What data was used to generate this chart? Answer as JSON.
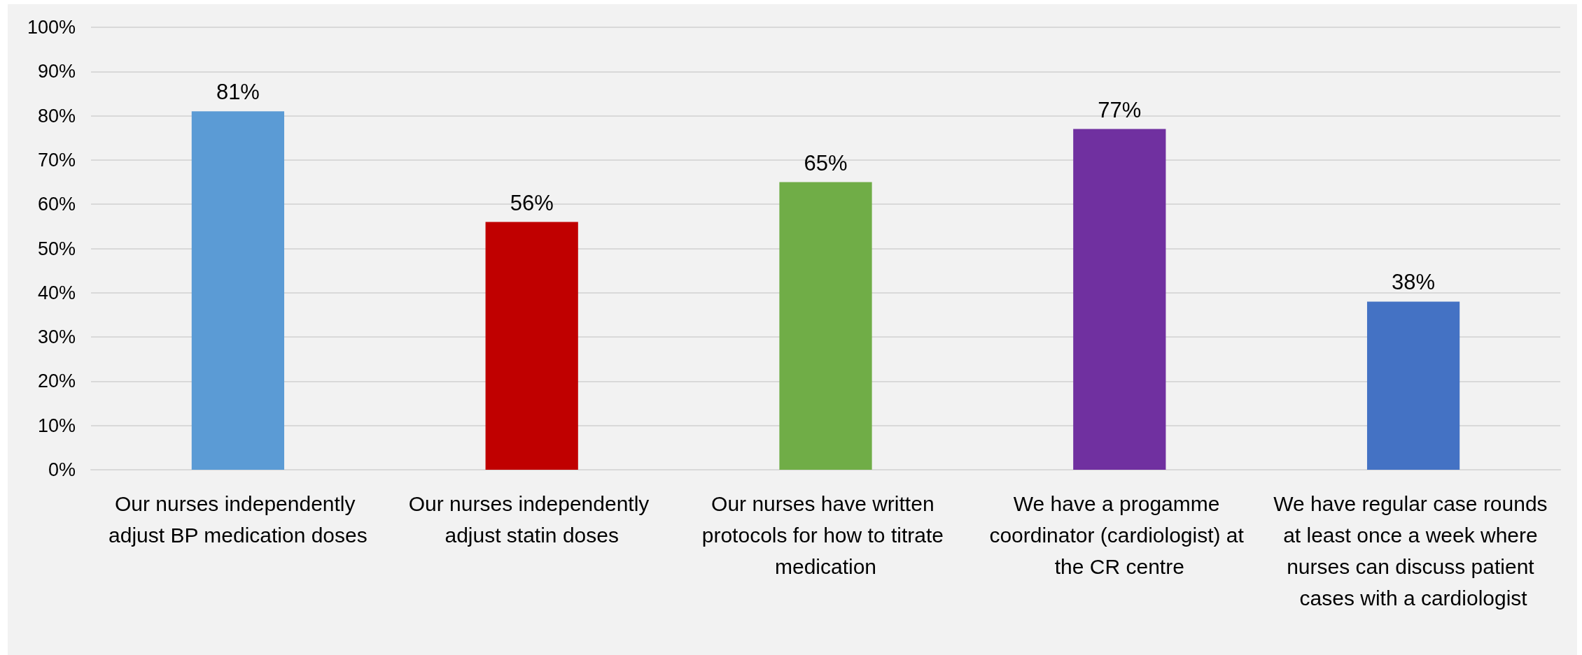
{
  "chart_data": {
    "type": "bar",
    "categories": [
      "Our nurses independently adjust BP medication doses",
      "Our nurses independently adjust statin doses",
      "Our nurses have written protocols for how to titrate medication",
      "We have a progamme coordinator (cardiologist) at the CR centre",
      "We have regular case rounds at least once a week where nurses can discuss patient cases with a cardiologist"
    ],
    "values": [
      81,
      56,
      65,
      77,
      38
    ],
    "colors": [
      "#5b9bd5",
      "#c00000",
      "#70ad47",
      "#7030a0",
      "#4472c4"
    ],
    "value_labels": [
      "81%",
      "56%",
      "65%",
      "77%",
      "38%"
    ],
    "ylim": [
      0,
      100
    ],
    "yticks": [
      {
        "value": 0,
        "label": "0%"
      },
      {
        "value": 10,
        "label": "10%"
      },
      {
        "value": 20,
        "label": "20%"
      },
      {
        "value": 30,
        "label": "30%"
      },
      {
        "value": 40,
        "label": "40%"
      },
      {
        "value": 50,
        "label": "50%"
      },
      {
        "value": 60,
        "label": "60%"
      },
      {
        "value": 70,
        "label": "70%"
      },
      {
        "value": 80,
        "label": "80%"
      },
      {
        "value": 90,
        "label": "90%"
      },
      {
        "value": 100,
        "label": "100%"
      }
    ],
    "grid": "y"
  }
}
